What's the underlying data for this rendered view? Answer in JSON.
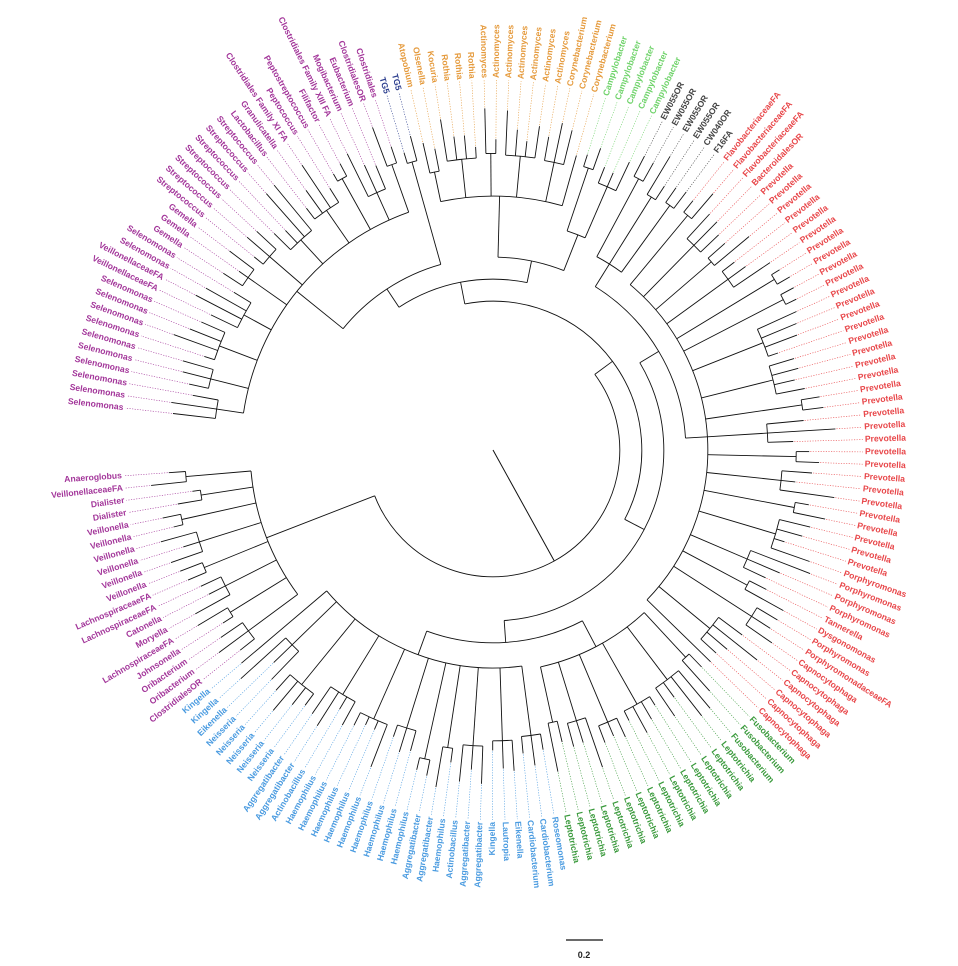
{
  "tree": {
    "tips": [
      {
        "label": "Selenomonas",
        "group": "purple"
      },
      {
        "label": "Selenomonas",
        "group": "purple"
      },
      {
        "label": "Selenomonas",
        "group": "purple"
      },
      {
        "label": "Selenomonas",
        "group": "purple"
      },
      {
        "label": "Selenomonas",
        "group": "purple"
      },
      {
        "label": "Selenomonas",
        "group": "purple"
      },
      {
        "label": "Selenomonas",
        "group": "purple"
      },
      {
        "label": "Selenomonas",
        "group": "purple"
      },
      {
        "label": "Selenomonas",
        "group": "purple"
      },
      {
        "label": "Selenomonas",
        "group": "purple"
      },
      {
        "label": "VeillonellaceaeFA",
        "group": "purple"
      },
      {
        "label": "VeillonellaceaeFA",
        "group": "purple"
      },
      {
        "label": "Selenomonas",
        "group": "purple"
      },
      {
        "label": "Selenomonas",
        "group": "purple"
      },
      {
        "label": "Gemella",
        "group": "purple"
      },
      {
        "label": "Gemella",
        "group": "purple"
      },
      {
        "label": "Gemella",
        "group": "purple"
      },
      {
        "label": "Streptococcus",
        "group": "purple"
      },
      {
        "label": "Streptococcus",
        "group": "purple"
      },
      {
        "label": "Streptococcus",
        "group": "purple"
      },
      {
        "label": "Streptococcus",
        "group": "purple"
      },
      {
        "label": "Streptococcus",
        "group": "purple"
      },
      {
        "label": "Streptococcus",
        "group": "purple"
      },
      {
        "label": "Streptococcus",
        "group": "purple"
      },
      {
        "label": "Lactobacillus",
        "group": "purple"
      },
      {
        "label": "Granulicatella",
        "group": "purple"
      },
      {
        "label": "Clostridiales Family XI FA",
        "group": "purple"
      },
      {
        "label": "Peptococcus",
        "group": "purple"
      },
      {
        "label": "Peptostreptococcus",
        "group": "purple"
      },
      {
        "label": "Filifactor",
        "group": "purple"
      },
      {
        "label": "Clostridiales Family XIII FA",
        "group": "purple"
      },
      {
        "label": "Mogibacterium",
        "group": "purple"
      },
      {
        "label": "Eubacterium",
        "group": "purple"
      },
      {
        "label": "ClostridialesOR",
        "group": "purple"
      },
      {
        "label": "Clostridiales",
        "group": "purple"
      },
      {
        "label": "TG5",
        "group": "navy"
      },
      {
        "label": "TG5",
        "group": "navy"
      },
      {
        "label": "Atopobium",
        "group": "orange"
      },
      {
        "label": "Olsenella",
        "group": "orange"
      },
      {
        "label": "Kocuria",
        "group": "orange"
      },
      {
        "label": "Rothia",
        "group": "orange"
      },
      {
        "label": "Rothia",
        "group": "orange"
      },
      {
        "label": "Rothia",
        "group": "orange"
      },
      {
        "label": "Actinomyces",
        "group": "orange"
      },
      {
        "label": "Actinomyces",
        "group": "orange"
      },
      {
        "label": "Actinomyces",
        "group": "orange"
      },
      {
        "label": "Actinomyces",
        "group": "orange"
      },
      {
        "label": "Actinomyces",
        "group": "orange"
      },
      {
        "label": "Actinomyces",
        "group": "orange"
      },
      {
        "label": "Actinomyces",
        "group": "orange"
      },
      {
        "label": "Corynebacterium",
        "group": "orange"
      },
      {
        "label": "Corynebacterium",
        "group": "orange"
      },
      {
        "label": "Corynebacterium",
        "group": "orange"
      },
      {
        "label": "Campylobacter",
        "group": "lightgreen"
      },
      {
        "label": "Campylobacter",
        "group": "lightgreen"
      },
      {
        "label": "Campylobacter",
        "group": "lightgreen"
      },
      {
        "label": "Campylobacter",
        "group": "lightgreen"
      },
      {
        "label": "Campylobacter",
        "group": "lightgreen"
      },
      {
        "label": "EW055OR",
        "group": "black"
      },
      {
        "label": "EW055OR",
        "group": "black"
      },
      {
        "label": "EW055OR",
        "group": "black"
      },
      {
        "label": "EW055OR",
        "group": "black"
      },
      {
        "label": "CW040OR",
        "group": "black"
      },
      {
        "label": "F16FA",
        "group": "black"
      },
      {
        "label": "FlavobacteriaceaeFA",
        "group": "red"
      },
      {
        "label": "FlavobacteriaceaeFA",
        "group": "red"
      },
      {
        "label": "FlavobacteriaceaeFA",
        "group": "red"
      },
      {
        "label": "BacteroidalesOR",
        "group": "red"
      },
      {
        "label": "Prevotella",
        "group": "red"
      },
      {
        "label": "Prevotella",
        "group": "red"
      },
      {
        "label": "Prevotella",
        "group": "red"
      },
      {
        "label": "Prevotella",
        "group": "red"
      },
      {
        "label": "Prevotella",
        "group": "red"
      },
      {
        "label": "Prevotella",
        "group": "red"
      },
      {
        "label": "Prevotella",
        "group": "red"
      },
      {
        "label": "Prevotella",
        "group": "red"
      },
      {
        "label": "Prevotella",
        "group": "red"
      },
      {
        "label": "Prevotella",
        "group": "red"
      },
      {
        "label": "Prevotella",
        "group": "red"
      },
      {
        "label": "Prevotella",
        "group": "red"
      },
      {
        "label": "Prevotella",
        "group": "red"
      },
      {
        "label": "Prevotella",
        "group": "red"
      },
      {
        "label": "Prevotella",
        "group": "red"
      },
      {
        "label": "Prevotella",
        "group": "red"
      },
      {
        "label": "Prevotella",
        "group": "red"
      },
      {
        "label": "Prevotella",
        "group": "red"
      },
      {
        "label": "Prevotella",
        "group": "red"
      },
      {
        "label": "Prevotella",
        "group": "red"
      },
      {
        "label": "Prevotella",
        "group": "red"
      },
      {
        "label": "Prevotella",
        "group": "red"
      },
      {
        "label": "Prevotella",
        "group": "red"
      },
      {
        "label": "Prevotella",
        "group": "red"
      },
      {
        "label": "Prevotella",
        "group": "red"
      },
      {
        "label": "Prevotella",
        "group": "red"
      },
      {
        "label": "Prevotella",
        "group": "red"
      },
      {
        "label": "Prevotella",
        "group": "red"
      },
      {
        "label": "Prevotella",
        "group": "red"
      },
      {
        "label": "Prevotella",
        "group": "red"
      },
      {
        "label": "Prevotella",
        "group": "red"
      },
      {
        "label": "Prevotella",
        "group": "red"
      },
      {
        "label": "Prevotella",
        "group": "red"
      },
      {
        "label": "Porphyromonas",
        "group": "red"
      },
      {
        "label": "Porphyromonas",
        "group": "red"
      },
      {
        "label": "Porphyromonas",
        "group": "red"
      },
      {
        "label": "Porphyromonas",
        "group": "red"
      },
      {
        "label": "Tannerella",
        "group": "red"
      },
      {
        "label": "Dysgonomonas",
        "group": "red"
      },
      {
        "label": "Porphyromonas",
        "group": "red"
      },
      {
        "label": "PorphyromonadaceaeFA",
        "group": "red"
      },
      {
        "label": "Capnocytophaga",
        "group": "red"
      },
      {
        "label": "Capnocytophaga",
        "group": "red"
      },
      {
        "label": "Capnocytophaga",
        "group": "red"
      },
      {
        "label": "Capnocytophaga",
        "group": "red"
      },
      {
        "label": "Capnocytophaga",
        "group": "red"
      },
      {
        "label": "Capnocytophaga",
        "group": "red"
      },
      {
        "label": "Fusobacterium",
        "group": "green"
      },
      {
        "label": "Fusobacterium",
        "group": "green"
      },
      {
        "label": "Fusobacterium",
        "group": "green"
      },
      {
        "label": "Leptotrichia",
        "group": "green"
      },
      {
        "label": "Leptotrichia",
        "group": "green"
      },
      {
        "label": "Leptotrichia",
        "group": "green"
      },
      {
        "label": "Leptotrichia",
        "group": "green"
      },
      {
        "label": "Leptotrichia",
        "group": "green"
      },
      {
        "label": "Leptotrichia",
        "group": "green"
      },
      {
        "label": "Leptotrichia",
        "group": "green"
      },
      {
        "label": "Leptotrichia",
        "group": "green"
      },
      {
        "label": "Leptotrichia",
        "group": "green"
      },
      {
        "label": "Leptotrichia",
        "group": "green"
      },
      {
        "label": "Leptotrichia",
        "group": "green"
      },
      {
        "label": "Leptotrichia",
        "group": "green"
      },
      {
        "label": "Leptotrichia",
        "group": "green"
      },
      {
        "label": "Leptotrichia",
        "group": "green"
      },
      {
        "label": "Leptotrichia",
        "group": "green"
      },
      {
        "label": "Roseomonas",
        "group": "blue"
      },
      {
        "label": "Cardiobacterium",
        "group": "blue"
      },
      {
        "label": "Cardiobacterium",
        "group": "blue"
      },
      {
        "label": "Eikenella",
        "group": "blue"
      },
      {
        "label": "Lautropia",
        "group": "blue"
      },
      {
        "label": "Kingella",
        "group": "blue"
      },
      {
        "label": "Aggregatibacter",
        "group": "blue"
      },
      {
        "label": "Aggregatibacter",
        "group": "blue"
      },
      {
        "label": "Actinobacillus",
        "group": "blue"
      },
      {
        "label": "Haemophilus",
        "group": "blue"
      },
      {
        "label": "Aggregatibacter",
        "group": "blue"
      },
      {
        "label": "Aggregatibacter",
        "group": "blue"
      },
      {
        "label": "Haemophilus",
        "group": "blue"
      },
      {
        "label": "Haemophilus",
        "group": "blue"
      },
      {
        "label": "Haemophilus",
        "group": "blue"
      },
      {
        "label": "Haemophilus",
        "group": "blue"
      },
      {
        "label": "Haemophilus",
        "group": "blue"
      },
      {
        "label": "Haemophilus",
        "group": "blue"
      },
      {
        "label": "Haemophilus",
        "group": "blue"
      },
      {
        "label": "Haemophilus",
        "group": "blue"
      },
      {
        "label": "Haemophilus",
        "group": "blue"
      },
      {
        "label": "Actinobacillus",
        "group": "blue"
      },
      {
        "label": "Aggregatibacter",
        "group": "blue"
      },
      {
        "label": "Aggregatibacter",
        "group": "blue"
      },
      {
        "label": "Neisseria",
        "group": "blue"
      },
      {
        "label": "Neisseria",
        "group": "blue"
      },
      {
        "label": "Neisseria",
        "group": "blue"
      },
      {
        "label": "Neisseria",
        "group": "blue"
      },
      {
        "label": "Neisseria",
        "group": "blue"
      },
      {
        "label": "Eikenella",
        "group": "blue"
      },
      {
        "label": "Kingella",
        "group": "blue"
      },
      {
        "label": "Kingella",
        "group": "blue"
      },
      {
        "label": "ClostridialesOR",
        "group": "purple"
      },
      {
        "label": "Oribacterium",
        "group": "purple"
      },
      {
        "label": "Oribacterium",
        "group": "purple"
      },
      {
        "label": "Johnsonella",
        "group": "purple"
      },
      {
        "label": "LachnospiraceaeFA",
        "group": "purple"
      },
      {
        "label": "Moryella",
        "group": "purple"
      },
      {
        "label": "Catonella",
        "group": "purple"
      },
      {
        "label": "LachnospiraceaeFA",
        "group": "purple"
      },
      {
        "label": "LachnospiraceaeFA",
        "group": "purple"
      },
      {
        "label": "Veillonella",
        "group": "purple"
      },
      {
        "label": "Veillonella",
        "group": "purple"
      },
      {
        "label": "Veillonella",
        "group": "purple"
      },
      {
        "label": "Veillonella",
        "group": "purple"
      },
      {
        "label": "Veillonella",
        "group": "purple"
      },
      {
        "label": "Veillonella",
        "group": "purple"
      },
      {
        "label": "Dialister",
        "group": "purple"
      },
      {
        "label": "Dialister",
        "group": "purple"
      },
      {
        "label": "VeillonellaceaeFA",
        "group": "purple"
      },
      {
        "label": "Anaeroglobus",
        "group": "purple"
      }
    ],
    "colors": {
      "purple": "#a3369a",
      "navy": "#2c3e8e",
      "orange": "#e59a3c",
      "lightgreen": "#6fd36a",
      "black": "#444444",
      "red": "#e8474a",
      "green": "#3a9a3c",
      "blue": "#4a9be0",
      "branch": "#111111"
    },
    "scale_label": "0.2"
  }
}
